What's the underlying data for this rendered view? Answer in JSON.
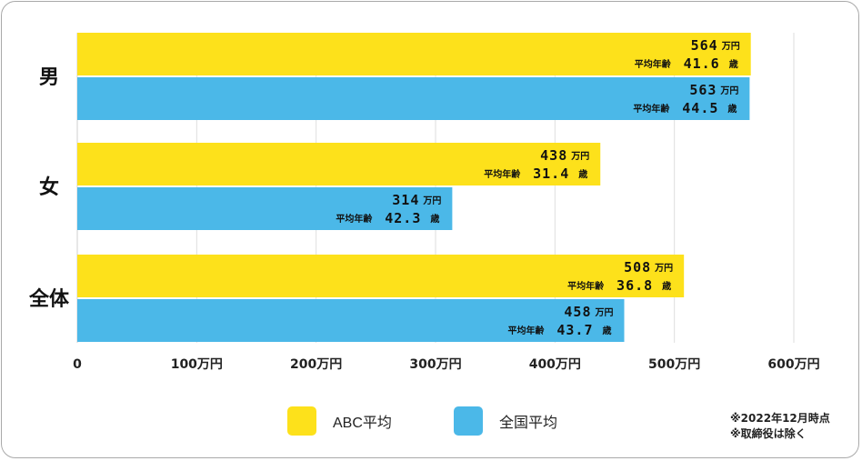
{
  "chart_data": {
    "type": "bar",
    "orientation": "horizontal",
    "categories": [
      "男",
      "女",
      "全体"
    ],
    "series": [
      {
        "name": "ABC平均",
        "color": "#FDE11B",
        "values": [
          564,
          438,
          508
        ],
        "ages": [
          41.6,
          31.4,
          36.8
        ]
      },
      {
        "name": "全国平均",
        "color": "#4BB8E8",
        "values": [
          563,
          314,
          458
        ],
        "ages": [
          44.5,
          42.3,
          43.7
        ]
      }
    ],
    "value_unit": "万円",
    "age_label": "平均年齢",
    "age_unit": "歳",
    "xlim": [
      0,
      600
    ],
    "xticks": [
      0,
      100,
      200,
      300,
      400,
      500,
      600
    ],
    "xtick_labels": [
      "0",
      "100万円",
      "200万円",
      "300万円",
      "400万円",
      "500万円",
      "600万円"
    ],
    "grid": true,
    "legend_position": "bottom"
  },
  "notes": [
    "※2022年12月時点",
    "※取締役は除く"
  ]
}
